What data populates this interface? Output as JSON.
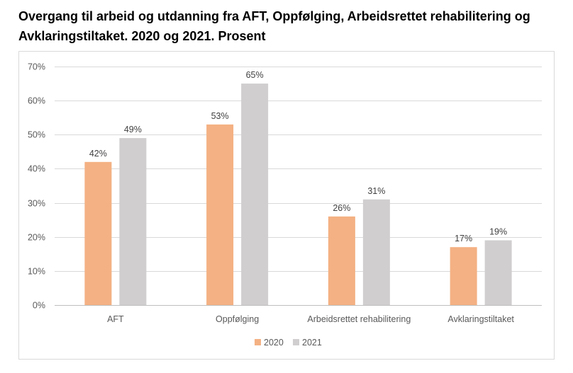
{
  "title": "Overgang til arbeid og utdanning fra AFT, Oppfølging, Arbeidsrettet rehabilitering og Avklaringstiltaket. 2020 og 2021. Prosent",
  "chart_data": {
    "type": "bar",
    "title": "Overgang til arbeid og utdanning fra AFT, Oppfølging, Arbeidsrettet rehabilitering og Avklaringstiltaket. 2020 og 2021. Prosent",
    "categories": [
      "AFT",
      "Oppfølging",
      "Arbeidsrettet rehabilitering",
      "Avklaringstiltaket"
    ],
    "series": [
      {
        "name": "2020",
        "values": [
          42,
          53,
          26,
          17
        ],
        "labels": [
          "42%",
          "53%",
          "26%",
          "17%"
        ],
        "color": "#f4b183"
      },
      {
        "name": "2021",
        "values": [
          49,
          65,
          31,
          19
        ],
        "labels": [
          "49%",
          "65%",
          "31%",
          "19%"
        ],
        "color": "#d0cece"
      }
    ],
    "ylim": [
      0,
      70
    ],
    "yticks": [
      0,
      10,
      20,
      30,
      40,
      50,
      60,
      70
    ],
    "ytick_labels": [
      "0%",
      "10%",
      "20%",
      "30%",
      "40%",
      "50%",
      "60%",
      "70%"
    ],
    "grid": true,
    "legend": "bottom-center",
    "xlabel": "",
    "ylabel": ""
  }
}
